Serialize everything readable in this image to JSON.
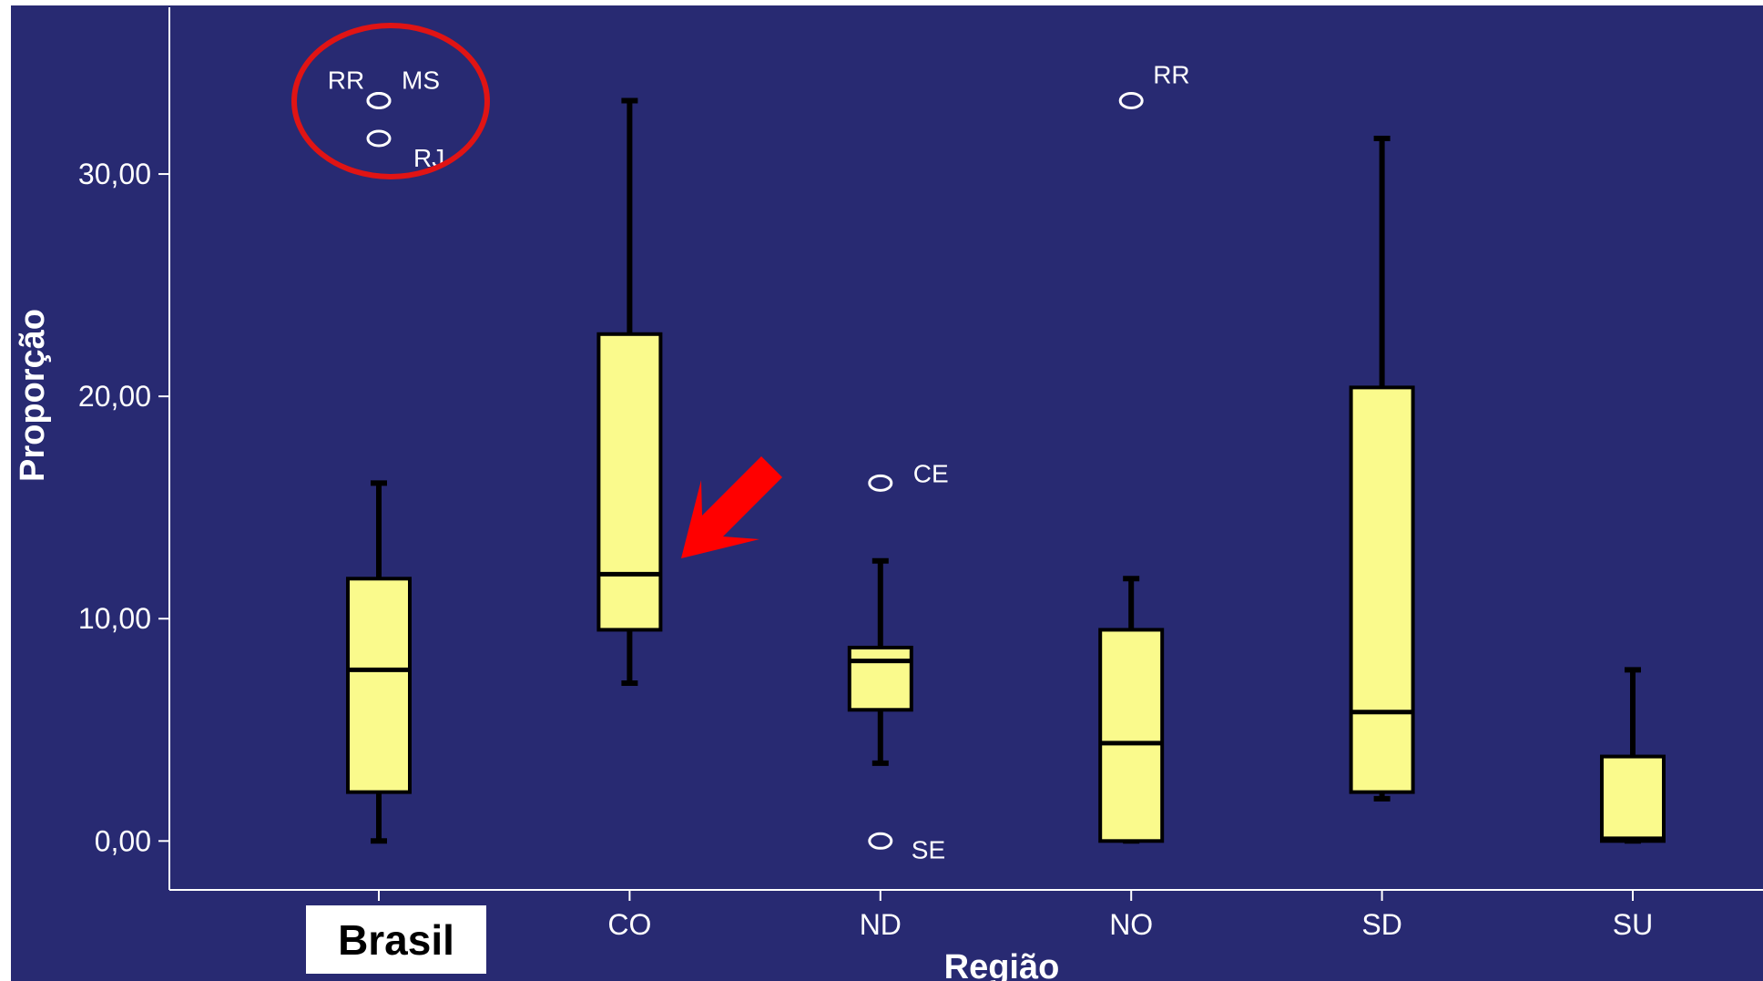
{
  "colors": {
    "background": "#282a72",
    "box_fill": "#fafa8c",
    "axis": "#ffffff",
    "annotation": "#ff0000"
  },
  "chart_data": {
    "type": "box",
    "xlabel": "Região",
    "ylabel": "Proporção",
    "ylim": [
      -2.2,
      37.5
    ],
    "yticks": [
      0,
      10,
      20,
      30
    ],
    "ytick_labels": [
      "0,00",
      "10,00",
      "20,00",
      "30,00"
    ],
    "categories": [
      "Brasil",
      "CO",
      "ND",
      "NO",
      "SD",
      "SU"
    ],
    "category_labels": [
      "",
      "CO",
      "ND",
      "NO",
      "SD",
      "SU"
    ],
    "boxes": [
      {
        "category": "Brasil",
        "whisker_low": 0.0,
        "q1": 2.2,
        "median": 7.7,
        "q3": 11.8,
        "whisker_high": 16.1,
        "outliers": [
          {
            "value": 33.3,
            "label": "RR"
          },
          {
            "value": 33.3,
            "label": "MS"
          },
          {
            "value": 31.6,
            "label": "RJ"
          }
        ]
      },
      {
        "category": "CO",
        "whisker_low": 7.1,
        "q1": 9.5,
        "median": 12.0,
        "q3": 22.8,
        "whisker_high": 33.3,
        "outliers": []
      },
      {
        "category": "ND",
        "whisker_low": 3.5,
        "q1": 5.9,
        "median": 8.1,
        "q3": 8.7,
        "whisker_high": 12.6,
        "outliers": [
          {
            "value": 16.1,
            "label": "CE"
          },
          {
            "value": 0.0,
            "label": "SE"
          }
        ]
      },
      {
        "category": "NO",
        "whisker_low": 0.0,
        "q1": 0.0,
        "median": 4.4,
        "q3": 9.5,
        "whisker_high": 11.8,
        "outliers": [
          {
            "value": 33.3,
            "label": "RR"
          }
        ]
      },
      {
        "category": "SD",
        "whisker_low": 1.9,
        "q1": 2.2,
        "median": 5.8,
        "q3": 20.4,
        "whisker_high": 31.6,
        "outliers": []
      },
      {
        "category": "SU",
        "whisker_low": 0.0,
        "q1": 0.0,
        "median": 0.1,
        "q3": 3.8,
        "whisker_high": 7.7,
        "outliers": []
      }
    ]
  },
  "annotations": {
    "brasil_label": "Brasil",
    "circle_around": "Brasil outliers",
    "arrow_points_to": "CO median"
  }
}
